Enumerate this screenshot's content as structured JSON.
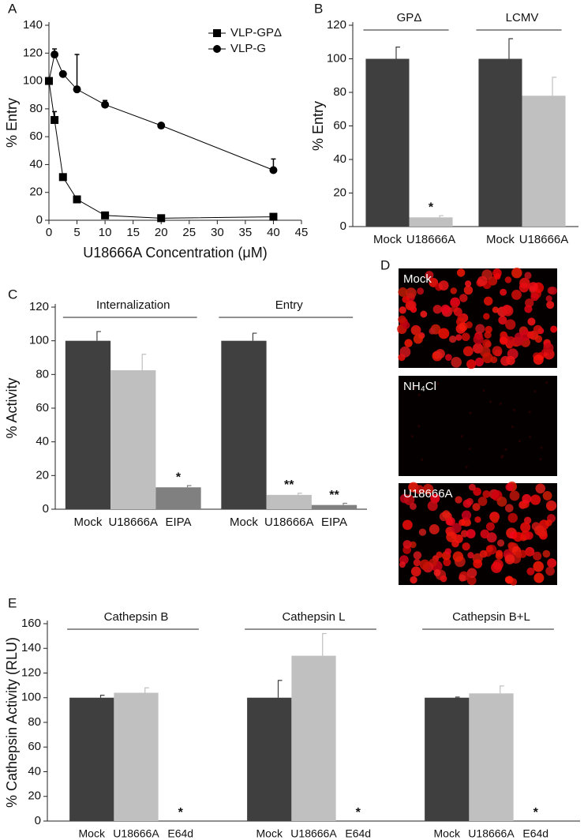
{
  "chart_data": [
    {
      "type": "line",
      "panel": "A",
      "ylabel": "% Entry",
      "xlabel": "U18666A Concentration (μM)",
      "x": [
        0,
        1,
        2.5,
        5,
        10,
        20,
        40
      ],
      "series": [
        {
          "name": "VLP-GPΔ",
          "color": "#000000",
          "marker": "square",
          "values": [
            100,
            72,
            31,
            15,
            3.5,
            1.5,
            2.5
          ],
          "errors": [
            null,
            6,
            null,
            null,
            null,
            null,
            null
          ]
        },
        {
          "name": "VLP-G",
          "color": "#000000",
          "marker": "circle",
          "values": [
            100,
            119,
            105,
            94,
            83,
            68,
            36
          ],
          "errors": [
            null,
            4,
            null,
            25,
            3,
            null,
            8
          ]
        }
      ],
      "xlim": [
        0,
        45
      ],
      "xticks": [
        0,
        5,
        10,
        15,
        20,
        25,
        30,
        35,
        40,
        45
      ],
      "ylim": [
        0,
        140
      ],
      "yticks": [
        0,
        20,
        40,
        60,
        80,
        100,
        120,
        140
      ],
      "legend": "upper right"
    },
    {
      "type": "bar",
      "panel": "B",
      "ylabel": "% Entry",
      "groups": [
        "GPΔ",
        "LCMV"
      ],
      "series": [
        {
          "name": "Mock",
          "color": "#3f3f3f",
          "values": [
            100,
            100
          ],
          "errors": [
            7,
            12
          ]
        },
        {
          "name": "U18666A",
          "color": "#c0c0c0",
          "values": [
            5.5,
            78
          ],
          "errors": [
            1,
            11
          ]
        }
      ],
      "annotations": [
        {
          "series": 1,
          "group": 0,
          "text": "*"
        }
      ],
      "ylim": [
        0,
        120
      ],
      "yticks": [
        0,
        20,
        40,
        60,
        80,
        100,
        120
      ]
    },
    {
      "type": "bar",
      "panel": "C",
      "ylabel": "% Activity",
      "groups": [
        "Internalization",
        "Entry"
      ],
      "series": [
        {
          "name": "Mock",
          "color": "#404040",
          "values": [
            100,
            100
          ],
          "errors": [
            5.5,
            4.5
          ]
        },
        {
          "name": "U18666A",
          "color": "#bfbfbf",
          "values": [
            82.5,
            8.5
          ],
          "errors": [
            9.5,
            1
          ]
        },
        {
          "name": "EIPA",
          "color": "#808080",
          "values": [
            13,
            2.5
          ],
          "errors": [
            1,
            1
          ]
        }
      ],
      "annotations": [
        {
          "series": 2,
          "group": 0,
          "text": "*"
        },
        {
          "series": 1,
          "group": 1,
          "text": "**"
        },
        {
          "series": 2,
          "group": 1,
          "text": "**"
        }
      ],
      "ylim": [
        0,
        120
      ],
      "yticks": [
        0,
        20,
        40,
        60,
        80,
        100,
        120
      ]
    },
    {
      "type": "bar",
      "panel": "E",
      "ylabel": "% Cathepsin Activity (RLU)",
      "groups": [
        "Cathepsin B",
        "Cathepsin L",
        "Cathepsin B+L"
      ],
      "series": [
        {
          "name": "Mock",
          "color": "#3f3f3f",
          "values": [
            100,
            100,
            100
          ],
          "errors": [
            2,
            14,
            0.5
          ]
        },
        {
          "name": "U18666A",
          "color": "#c0c0c0",
          "values": [
            104,
            134,
            103.5
          ],
          "errors": [
            4,
            18,
            6
          ]
        },
        {
          "name": "E64d",
          "color": "#808080",
          "values": [
            0,
            0,
            0
          ],
          "errors": [
            null,
            null,
            null
          ]
        }
      ],
      "annotations": [
        {
          "series": 2,
          "group": 0,
          "text": "*"
        },
        {
          "series": 2,
          "group": 1,
          "text": "*"
        },
        {
          "series": 2,
          "group": 2,
          "text": "*"
        }
      ],
      "ylim": [
        0,
        160
      ],
      "yticks": [
        0,
        20,
        40,
        60,
        80,
        100,
        120,
        140,
        160
      ]
    }
  ],
  "panel_d": {
    "panel": "D",
    "images": [
      {
        "label": "Mock"
      },
      {
        "label": "NH₄Cl"
      },
      {
        "label": "U18666A"
      }
    ]
  }
}
